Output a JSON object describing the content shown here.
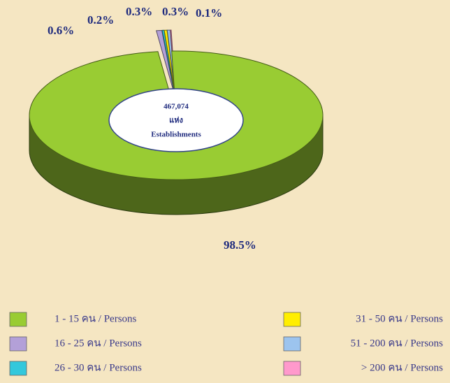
{
  "chart_data": {
    "type": "pie",
    "categories": [
      "1 - 15 คน / Persons",
      "16 - 25 คน / Persons",
      "26 - 30 คน / Persons",
      "31 - 50 คน / Persons",
      "51 - 200 คน / Persons",
      "> 200 คน / Persons"
    ],
    "values": [
      98.5,
      0.6,
      0.2,
      0.3,
      0.3,
      0.1
    ],
    "value_labels": [
      "98.5%",
      "0.6%",
      "0.2%",
      "0.3%",
      "0.3%",
      "0.1%"
    ],
    "colors": [
      "#99cc33",
      "#b3a0d8",
      "#33c8dc",
      "#ffee00",
      "#9cc4ee",
      "#ff99cc"
    ],
    "center_label": [
      "467,074",
      "แห่ง",
      "Establishments"
    ]
  }
}
